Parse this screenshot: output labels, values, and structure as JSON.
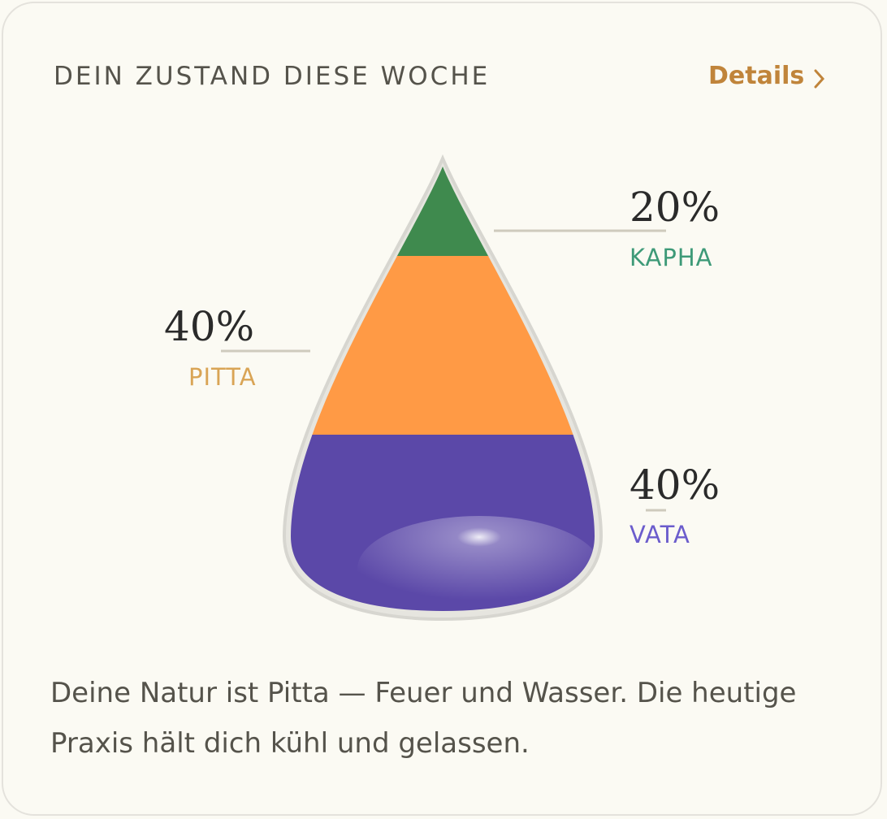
{
  "header": {
    "title": "DEIN ZUSTAND DIESE WOCHE",
    "link": "Details"
  },
  "chart_data": {
    "type": "drop",
    "categories": [
      "KAPHA",
      "PITTA",
      "VATA"
    ],
    "values": [
      20,
      40,
      40
    ],
    "value_labels": [
      "20%",
      "40%",
      "40%"
    ],
    "colors": [
      "#3f8a4e",
      "#ff9a45",
      "#5b48a8"
    ],
    "label_colors": [
      "#3e9a78",
      "#d9a455",
      "#6b5ccc"
    ]
  },
  "description": "Deine Natur ist Pitta — Feuer und Wasser. Die heutige Praxis hält dich kühl und gelassen."
}
